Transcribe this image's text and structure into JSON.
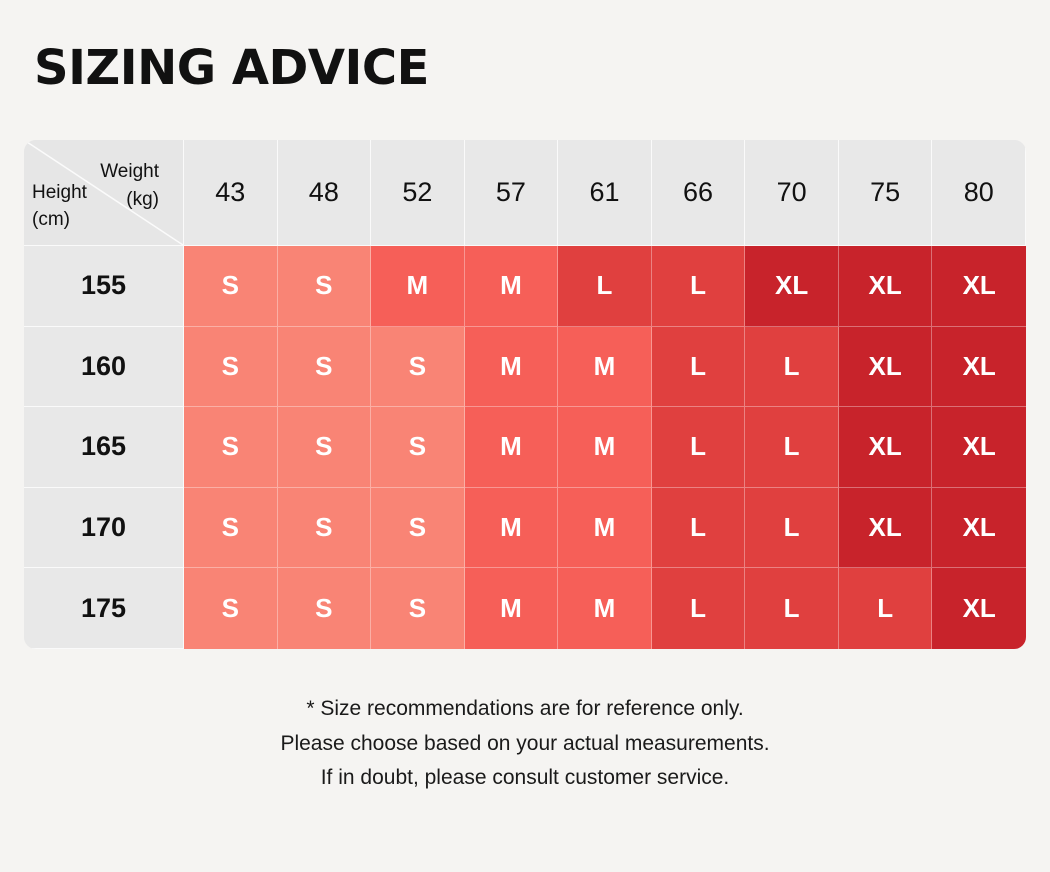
{
  "title": "SIZING ADVICE",
  "table": {
    "corner": {
      "weight_label": "Weight",
      "weight_unit": "(kg)",
      "height_label": "Height",
      "height_unit": "(cm)"
    },
    "weights": [
      "43",
      "48",
      "52",
      "57",
      "61",
      "66",
      "70",
      "75",
      "80"
    ],
    "heights": [
      "155",
      "160",
      "165",
      "170",
      "175"
    ],
    "sizes": [
      [
        "S",
        "S",
        "M",
        "M",
        "L",
        "L",
        "XL",
        "XL",
        "XL"
      ],
      [
        "S",
        "S",
        "S",
        "M",
        "M",
        "L",
        "L",
        "XL",
        "XL"
      ],
      [
        "S",
        "S",
        "S",
        "M",
        "M",
        "L",
        "L",
        "XL",
        "XL"
      ],
      [
        "S",
        "S",
        "S",
        "M",
        "M",
        "L",
        "L",
        "XL",
        "XL"
      ],
      [
        "S",
        "S",
        "S",
        "M",
        "M",
        "L",
        "L",
        "L",
        "XL"
      ]
    ],
    "size_colors": {
      "S": "#f98475",
      "M": "#f65f58",
      "L": "#e0403f",
      "XL": "#c8232b"
    }
  },
  "notes": [
    "* Size recommendations are for reference only.",
    "Please choose based on your actual measurements.",
    "If in doubt, please consult customer service."
  ]
}
